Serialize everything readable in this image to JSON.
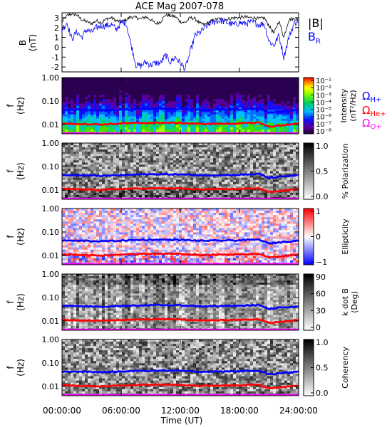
{
  "title": "ACE Mag 2007-078",
  "x_axis": {
    "label": "Time (UT)",
    "range_hours": [
      0,
      24
    ],
    "ticks": [
      {
        "h": 0,
        "label": "00:00:00"
      },
      {
        "h": 6,
        "label": "06:00:00"
      },
      {
        "h": 12,
        "label": "12:00:00"
      },
      {
        "h": 18,
        "label": "18:00:00"
      },
      {
        "h": 24,
        "label": "24:00:00"
      }
    ]
  },
  "colors": {
    "b_magnitude": "#000000",
    "b_r": "#0000ff",
    "h_plus": "#0000ff",
    "he_plus": "#ff0000",
    "o_plus": "#ff00ff"
  },
  "panel_b": {
    "ylabel_line1": "B",
    "ylabel_line2": "(nT)",
    "yticks": [
      "3",
      "2",
      "1",
      "0",
      "-1",
      "-2"
    ],
    "legend_b": "|B|",
    "legend_br": "B",
    "legend_br_sub": "R"
  },
  "freq_axis": {
    "ylabel_line1": "f",
    "ylabel_line2": "(Hz)",
    "yticks": [
      "1.00",
      "0.10",
      "0.01"
    ]
  },
  "gyro_legend": {
    "h": {
      "symbol": "Ω",
      "sub": "H+"
    },
    "he": {
      "symbol": "Ω",
      "sub": "He+"
    },
    "o": {
      "symbol": "Ω",
      "sub": "O+"
    }
  },
  "panels": [
    {
      "label": "Intensity",
      "label2": "(nT²/Hz)",
      "ticks": [
        "10⁻¹",
        "10⁻²",
        "10⁻³",
        "10⁻⁴",
        "10⁻⁵",
        "10⁻⁶",
        "10⁻⁷",
        "10⁻⁸"
      ]
    },
    {
      "label": "% Polarization",
      "label2": "",
      "ticks": [
        "1.0",
        "0.5",
        "0.0"
      ]
    },
    {
      "label": "Ellipticity",
      "label2": "",
      "ticks": [
        "1",
        "0",
        "−1"
      ]
    },
    {
      "label": "k dot B",
      "label2": "(Deg)",
      "ticks": [
        "90",
        "60",
        "30",
        "0"
      ]
    },
    {
      "label": "Coherency",
      "label2": "",
      "ticks": [
        "1.0",
        "0.5",
        "0.0"
      ]
    }
  ],
  "chart_data": [
    {
      "type": "line",
      "title": "ACE Mag 2007-078",
      "xlabel": "Time (UT)",
      "ylabel": "B (nT)",
      "xlim": [
        0,
        24
      ],
      "ylim": [
        -2.5,
        3.5
      ],
      "series": [
        {
          "name": "|B|",
          "x": [
            0,
            0.5,
            1,
            1.5,
            2,
            2.5,
            3,
            3.5,
            4,
            4.5,
            5,
            5.5,
            6,
            6.5,
            7,
            7.5,
            8,
            8.5,
            9,
            9.5,
            10,
            10.5,
            11,
            11.5,
            12,
            12.5,
            13,
            13.5,
            14,
            14.5,
            15,
            15.5,
            16,
            16.5,
            17,
            17.5,
            18,
            18.5,
            19,
            19.5,
            20,
            20.5,
            21,
            21.5,
            22,
            22.5,
            23,
            23.5,
            24
          ],
          "y": [
            2.6,
            3.2,
            3.4,
            3.3,
            2.8,
            2.6,
            2.4,
            2.7,
            2.5,
            2.9,
            3.0,
            2.7,
            2.6,
            2.8,
            3.1,
            3.0,
            2.9,
            3.1,
            2.8,
            2.4,
            2.6,
            3.3,
            3.2,
            3.1,
            2.6,
            2.5,
            3.0,
            2.9,
            2.4,
            2.3,
            2.6,
            2.8,
            2.9,
            2.8,
            2.9,
            3.0,
            3.0,
            3.1,
            3.0,
            3.0,
            2.9,
            3.0,
            2.2,
            1.4,
            2.7,
            1.0,
            2.8,
            2.9,
            2.9
          ]
        },
        {
          "name": "B_R",
          "x": [
            0,
            0.5,
            1,
            1.5,
            2,
            2.5,
            3,
            3.5,
            4,
            4.5,
            5,
            5.5,
            6,
            6.5,
            7,
            7.5,
            8,
            8.5,
            9,
            9.5,
            10,
            10.5,
            11,
            11.5,
            12,
            12.5,
            13,
            13.5,
            14,
            14.5,
            15,
            15.5,
            16,
            16.5,
            17,
            17.5,
            18,
            18.5,
            19,
            19.5,
            20,
            20.5,
            21,
            21.5,
            22,
            22.5,
            23,
            23.5,
            24
          ],
          "y": [
            1.8,
            2.5,
            0.8,
            1.6,
            1.0,
            1.8,
            1.5,
            2.0,
            2.2,
            2.2,
            2.3,
            1.8,
            2.5,
            2.5,
            0.3,
            -1.8,
            -1.9,
            -1.5,
            -1.8,
            -1.6,
            -1.6,
            -0.8,
            -1.5,
            -1.0,
            -1.6,
            -2.2,
            -0.5,
            1.2,
            1.5,
            2.0,
            2.4,
            2.6,
            2.7,
            2.6,
            2.4,
            2.3,
            2.5,
            2.4,
            2.5,
            2.5,
            2.3,
            2.4,
            0.6,
            0.2,
            1.2,
            -1.0,
            1.0,
            2.3,
            2.8
          ]
        }
      ]
    },
    {
      "type": "heatmap",
      "ylabel": "f (Hz)",
      "yscale": "log",
      "ylim": [
        0.004,
        1.0
      ],
      "xlim": [
        0,
        24
      ],
      "colorbar": "Intensity (nT²/Hz)",
      "series": [
        {
          "name": "ΩH+",
          "x": [
            0,
            2,
            4,
            6,
            8,
            10,
            12,
            14,
            16,
            18,
            20,
            21,
            22,
            24
          ],
          "y": [
            0.043,
            0.042,
            0.04,
            0.043,
            0.046,
            0.047,
            0.046,
            0.042,
            0.043,
            0.044,
            0.048,
            0.032,
            0.036,
            0.043
          ]
        },
        {
          "name": "ΩHe+",
          "x": [
            0,
            2,
            4,
            6,
            8,
            10,
            12,
            14,
            16,
            18,
            20,
            21,
            22,
            24
          ],
          "y": [
            0.011,
            0.0105,
            0.01,
            0.011,
            0.0115,
            0.0118,
            0.0115,
            0.0105,
            0.0108,
            0.011,
            0.012,
            0.008,
            0.009,
            0.0108
          ]
        },
        {
          "name": "ΩO+",
          "x": [
            0,
            24
          ],
          "y": [
            0.0027,
            0.0027
          ]
        }
      ]
    }
  ]
}
